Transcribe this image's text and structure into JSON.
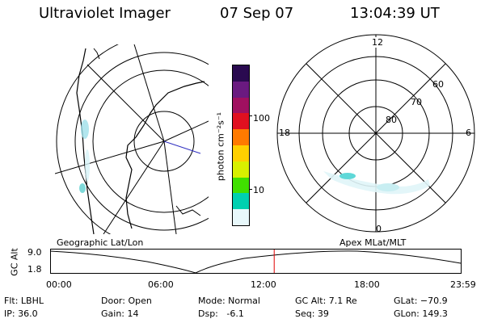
{
  "header": {
    "instrument": "Ultraviolet Imager",
    "date": "07 Sep 07",
    "time": "13:04:39 UT"
  },
  "colorbar": {
    "unit_label": "photon cm⁻²s⁻¹",
    "tick_100": "100",
    "tick_10": "10",
    "colors": [
      "#2a0a50",
      "#6a1a80",
      "#a01060",
      "#e01020",
      "#ff7a00",
      "#ffd000",
      "#d8f000",
      "#40e000",
      "#00d0b0",
      "#e8f8fb"
    ]
  },
  "maps": {
    "left_label": "Geographic Lat/Lon",
    "right_label": "Apex MLat/MLT"
  },
  "polar_plot": {
    "mlt_labels": {
      "top": "12",
      "left": "18",
      "right": "6",
      "bottom": "0"
    },
    "mlat_labels": [
      "60",
      "70",
      "80"
    ]
  },
  "altitude_plot": {
    "axis_label": "GC Alt",
    "y_max": "9.0",
    "y_min": "1.8",
    "time_ticks": [
      "00:00",
      "06:00",
      "12:00",
      "18:00",
      "23:59"
    ],
    "current_time_fraction": 0.5448
  },
  "info": {
    "flt": "Flt: LBHL",
    "ip": "IP: 36.0",
    "door": "Door: Open",
    "gain": "Gain: 14",
    "mode": "Mode: Normal",
    "dsp": "Dsp:   -6.1",
    "gcalt": "GC Alt: 7.1 Re",
    "seq": "Seq: 39",
    "glat": "GLat: −70.9",
    "glon": "GLon: 149.3"
  }
}
